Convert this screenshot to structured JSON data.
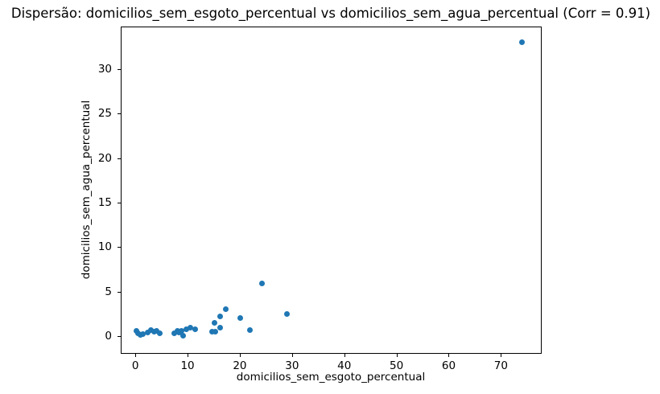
{
  "chart_data": {
    "type": "scatter",
    "title": "Dispersão: domicilios_sem_esgoto_percentual vs domicilios_sem_agua_percentual (Corr = 0.91)",
    "xlabel": "domicilios_sem_esgoto_percentual",
    "ylabel": "domicilios_sem_agua_percentual",
    "correlation": 0.91,
    "xlim": [
      -2.8,
      77.8
    ],
    "ylim": [
      -2.0,
      34.8
    ],
    "x_ticks": [
      0,
      10,
      20,
      30,
      40,
      50,
      60,
      70
    ],
    "y_ticks": [
      0,
      5,
      10,
      15,
      20,
      25,
      30
    ],
    "grid": false,
    "legend": "none",
    "marker_color": "#1f77b4",
    "text_color": "#000000",
    "background_color": "#ffffff",
    "points": [
      [
        0.2,
        0.55
      ],
      [
        0.5,
        0.3
      ],
      [
        0.9,
        0.12
      ],
      [
        1.5,
        0.25
      ],
      [
        2.3,
        0.4
      ],
      [
        3.0,
        0.7
      ],
      [
        3.6,
        0.5
      ],
      [
        4.1,
        0.6
      ],
      [
        4.7,
        0.35
      ],
      [
        7.4,
        0.35
      ],
      [
        8.0,
        0.6
      ],
      [
        8.3,
        0.4
      ],
      [
        8.9,
        0.6
      ],
      [
        9.2,
        0.05
      ],
      [
        9.8,
        0.8
      ],
      [
        10.6,
        0.9
      ],
      [
        11.4,
        0.8
      ],
      [
        14.7,
        0.5
      ],
      [
        15.3,
        0.5
      ],
      [
        15.2,
        1.45
      ],
      [
        16.2,
        2.2
      ],
      [
        16.3,
        0.95
      ],
      [
        17.3,
        3.0
      ],
      [
        20.1,
        2.0
      ],
      [
        21.9,
        0.65
      ],
      [
        24.3,
        5.9
      ],
      [
        29.0,
        2.5
      ],
      [
        74.0,
        33.0
      ]
    ]
  }
}
